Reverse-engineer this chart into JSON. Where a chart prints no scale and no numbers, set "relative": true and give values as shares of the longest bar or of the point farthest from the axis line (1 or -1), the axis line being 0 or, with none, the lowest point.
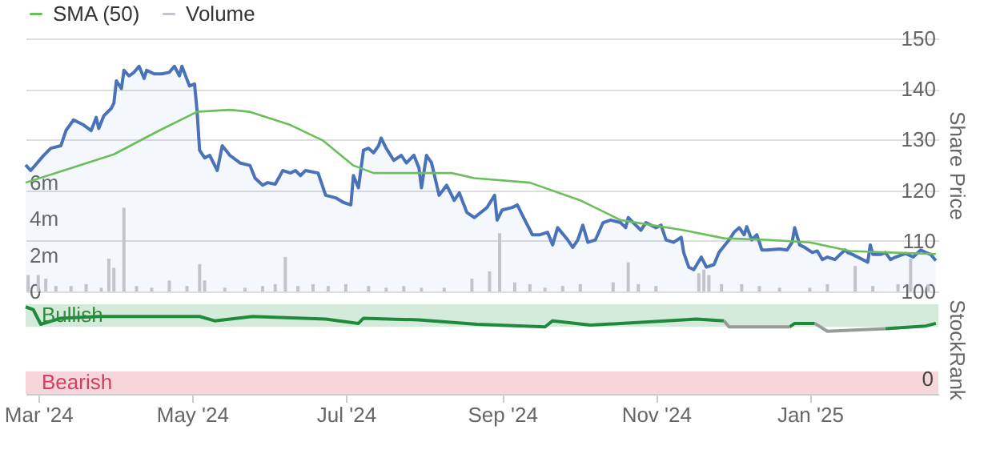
{
  "chart_data": [
    {
      "type": "area",
      "ylabel": "Share Price",
      "xlim": [
        "2024-02-25",
        "2025-02-21"
      ],
      "ylim": [
        100,
        150
      ],
      "yticks": [
        100,
        110,
        120,
        130,
        140,
        150
      ],
      "y2lim": [
        0,
        13.9
      ],
      "y2ticks": [
        0,
        {
          "value": 2,
          "label": "2m"
        },
        {
          "value": 4,
          "label": "4m"
        },
        {
          "value": 6,
          "label": "6m"
        }
      ],
      "grid": "y",
      "legend": "top left",
      "tick_labels": "y",
      "series": [
        {
          "color": "#4a72b8",
          "x": [
            "2024-02-25",
            "2024-02-27",
            "2024-03-03",
            "2024-03-06",
            "2024-03-10",
            "2024-03-12",
            "2024-03-15",
            "2024-03-19",
            "2024-03-22",
            "2024-03-24",
            "2024-03-25",
            "2024-03-27",
            "2024-03-30",
            "2024-03-31",
            "2024-04-01",
            "2024-04-03",
            "2024-04-04",
            "2024-04-06",
            "2024-04-08",
            "2024-04-10",
            "2024-04-12",
            "2024-04-13",
            "2024-04-16",
            "2024-04-19",
            "2024-04-22",
            "2024-04-24",
            "2024-04-26",
            "2024-04-27",
            "2024-04-30",
            "2024-05-02",
            "2024-05-03",
            "2024-05-04",
            "2024-05-06",
            "2024-05-08",
            "2024-05-11",
            "2024-05-13",
            "2024-05-16",
            "2024-05-20",
            "2024-05-24",
            "2024-05-26",
            "2024-05-29",
            "2024-05-31",
            "2024-06-03",
            "2024-06-06",
            "2024-06-09",
            "2024-06-11",
            "2024-06-13",
            "2024-06-15",
            "2024-06-20",
            "2024-06-23",
            "2024-06-27",
            "2024-06-30",
            "2024-07-03",
            "2024-07-04",
            "2024-07-06",
            "2024-07-08",
            "2024-07-10",
            "2024-07-12",
            "2024-07-14",
            "2024-07-15",
            "2024-07-17",
            "2024-07-20",
            "2024-07-23",
            "2024-07-25",
            "2024-07-28",
            "2024-07-30",
            "2024-07-31",
            "2024-08-02",
            "2024-08-04",
            "2024-08-07",
            "2024-08-10",
            "2024-08-13",
            "2024-08-15",
            "2024-08-18",
            "2024-08-21",
            "2024-08-26",
            "2024-08-29",
            "2024-08-30",
            "2024-09-01",
            "2024-09-05",
            "2024-09-07",
            "2024-09-10",
            "2024-09-13",
            "2024-09-16",
            "2024-09-19",
            "2024-09-21",
            "2024-09-23",
            "2024-09-27",
            "2024-09-29",
            "2024-10-01",
            "2024-10-03",
            "2024-10-05",
            "2024-10-08",
            "2024-10-11",
            "2024-10-14",
            "2024-10-18",
            "2024-10-20",
            "2024-10-21",
            "2024-10-23",
            "2024-10-26",
            "2024-10-28",
            "2024-11-01",
            "2024-11-03",
            "2024-11-05",
            "2024-11-08",
            "2024-11-11",
            "2024-11-12",
            "2024-11-14",
            "2024-11-16",
            "2024-11-19",
            "2024-11-21",
            "2024-11-24",
            "2024-11-26",
            "2024-11-30",
            "2024-12-02",
            "2024-12-04",
            "2024-12-06",
            "2024-12-07",
            "2024-12-09",
            "2024-12-11",
            "2024-12-13",
            "2024-12-15",
            "2024-12-20",
            "2024-12-23",
            "2024-12-25",
            "2024-12-26",
            "2024-12-28",
            "2024-12-30",
            "2025-01-02",
            "2025-01-04",
            "2025-01-06",
            "2025-01-08",
            "2025-01-11",
            "2025-01-13",
            "2025-01-15",
            "2025-01-16",
            "2025-01-18",
            "2025-01-22",
            "2025-01-24",
            "2025-01-25",
            "2025-01-26",
            "2025-01-29",
            "2025-01-31",
            "2025-02-02",
            "2025-02-04",
            "2025-02-08",
            "2025-02-11",
            "2025-02-14",
            "2025-02-16",
            "2025-02-18",
            "2025-02-20"
          ],
          "values": [
            125.0,
            123.9,
            126.8,
            128.3,
            128.8,
            131.8,
            133.9,
            132.9,
            131.8,
            134.4,
            132.2,
            134.7,
            136.2,
            137.2,
            141.6,
            140.1,
            143.7,
            142.6,
            143.3,
            144.5,
            142.1,
            143.7,
            143.0,
            143.0,
            143.3,
            144.5,
            142.6,
            144.5,
            140.6,
            141.0,
            135.7,
            127.9,
            126.4,
            126.9,
            123.9,
            128.8,
            126.9,
            125.4,
            124.9,
            122.4,
            121.0,
            121.5,
            121.2,
            123.9,
            123.4,
            123.9,
            122.9,
            123.9,
            123.4,
            119.0,
            118.5,
            117.6,
            117.1,
            122.9,
            120.5,
            127.9,
            128.3,
            127.4,
            128.8,
            130.3,
            128.3,
            125.9,
            126.9,
            125.4,
            126.9,
            124.4,
            120.5,
            126.9,
            125.4,
            119.0,
            121.0,
            118.0,
            119.5,
            115.6,
            114.6,
            116.6,
            119.0,
            114.1,
            116.1,
            116.6,
            117.1,
            114.1,
            111.2,
            111.2,
            111.7,
            109.2,
            112.6,
            110.2,
            108.7,
            110.2,
            113.1,
            109.7,
            110.2,
            113.6,
            114.1,
            113.6,
            112.6,
            114.6,
            113.6,
            112.1,
            113.6,
            112.6,
            113.1,
            110.2,
            109.7,
            110.7,
            107.7,
            104.8,
            104.3,
            106.8,
            104.8,
            105.3,
            107.7,
            110.2,
            111.7,
            112.6,
            111.2,
            112.8,
            110.2,
            111.2,
            108.2,
            108.2,
            108.4,
            108.2,
            109.7,
            112.6,
            109.2,
            108.7,
            107.7,
            108.0,
            106.3,
            106.8,
            106.3,
            107.3,
            108.2,
            107.7,
            107.3,
            106.3,
            105.8,
            109.2,
            107.3,
            107.3,
            107.7,
            106.3,
            106.8,
            107.5,
            106.8,
            108.2,
            107.7,
            107.3,
            106.1
          ]
        },
        {
          "name": "SMA (50)",
          "type": "line",
          "color": "#6abf5a",
          "x": [
            "2024-02-25",
            "2024-03-11",
            "2024-03-31",
            "2024-04-18",
            "2024-05-03",
            "2024-05-16",
            "2024-05-24",
            "2024-06-09",
            "2024-06-22",
            "2024-07-04",
            "2024-07-12",
            "2024-08-12",
            "2024-08-21",
            "2024-09-12",
            "2024-10-02",
            "2024-10-18",
            "2024-11-12",
            "2024-11-28",
            "2024-12-15",
            "2025-01-01",
            "2025-01-17",
            "2025-02-02",
            "2025-02-20"
          ],
          "values": [
            121.5,
            123.9,
            127.1,
            131.8,
            135.5,
            135.9,
            135.5,
            132.9,
            129.8,
            124.9,
            123.4,
            123.4,
            122.4,
            121.5,
            118.0,
            114.1,
            112.1,
            110.5,
            110.2,
            109.7,
            108.0,
            107.7,
            107.4
          ]
        },
        {
          "name": "Volume",
          "type": "bar",
          "axis": "y2",
          "color": "#c3c3c9",
          "x": [
            "2024-02-26",
            "2024-03-01",
            "2024-03-04",
            "2024-03-08",
            "2024-03-14",
            "2024-03-20",
            "2024-03-26",
            "2024-03-29",
            "2024-03-31",
            "2024-04-04",
            "2024-04-09",
            "2024-04-15",
            "2024-04-22",
            "2024-04-29",
            "2024-05-04",
            "2024-05-06",
            "2024-05-14",
            "2024-05-22",
            "2024-05-29",
            "2024-06-03",
            "2024-06-07",
            "2024-06-12",
            "2024-06-18",
            "2024-06-24",
            "2024-07-01",
            "2024-07-10",
            "2024-07-17",
            "2024-07-24",
            "2024-07-31",
            "2024-08-09",
            "2024-08-20",
            "2024-08-27",
            "2024-08-31",
            "2024-09-06",
            "2024-09-12",
            "2024-09-18",
            "2024-09-25",
            "2024-10-02",
            "2024-10-15",
            "2024-10-21",
            "2024-10-25",
            "2024-11-01",
            "2024-11-18",
            "2024-11-20",
            "2024-11-22",
            "2024-11-27",
            "2024-12-05",
            "2024-12-12",
            "2024-12-20",
            "2025-01-01",
            "2025-01-08",
            "2025-01-19",
            "2025-01-26",
            "2025-02-05",
            "2025-02-10",
            "2025-02-17"
          ],
          "values": [
            0.9,
            0.9,
            0.7,
            0.3,
            0.3,
            0.4,
            0.2,
            1.8,
            1.3,
            4.6,
            0.3,
            0.2,
            0.6,
            0.3,
            1.5,
            0.6,
            0.2,
            0.2,
            0.3,
            0.4,
            1.9,
            0.3,
            0.4,
            0.3,
            0.4,
            0.3,
            0.2,
            0.3,
            0.2,
            0.2,
            0.7,
            1.1,
            3.2,
            0.5,
            0.4,
            0.2,
            0.3,
            0.4,
            0.5,
            1.6,
            0.4,
            0.3,
            1.0,
            1.2,
            0.9,
            0.4,
            0.4,
            0.3,
            0.2,
            0.2,
            0.4,
            1.4,
            0.3,
            0.4,
            1.8,
            0.4
          ]
        }
      ]
    },
    {
      "type": "line",
      "ylabel": "StockRank",
      "xlim": [
        "2024-02-25",
        "2025-02-21"
      ],
      "xticks": [
        {
          "value": "2024-03-01",
          "label": "Mar '24"
        },
        {
          "value": "2024-05-01",
          "label": "May '24"
        },
        {
          "value": "2024-07-01",
          "label": "Jul '24"
        },
        {
          "value": "2024-09-01",
          "label": "Sep '24"
        },
        {
          "value": "2024-11-01",
          "label": "Nov '24"
        },
        {
          "value": "2025-01-01",
          "label": "Jan '25"
        }
      ],
      "relative": true,
      "annotations": [
        "0"
      ],
      "bands": [
        {
          "axis": "y",
          "from": 0.77,
          "to": 1.03,
          "label": "Bullish",
          "color": "#d4eadb"
        },
        {
          "axis": "y",
          "from": 0,
          "to": 0.26,
          "label": "Bearish",
          "color": "#f6d6da"
        }
      ],
      "x": [
        "2024-02-25",
        "2024-02-28",
        "2024-03-02",
        "2024-03-10",
        "2024-03-25",
        "2024-05-04",
        "2024-05-10",
        "2024-05-25",
        "2024-06-23",
        "2024-07-06",
        "2024-07-08",
        "2024-07-30",
        "2024-08-22",
        "2024-09-18",
        "2024-09-21",
        "2024-10-06",
        "2024-11-05",
        "2024-11-17",
        "2024-11-28",
        "2024-11-30",
        "2024-12-24",
        "2024-12-26",
        "2025-01-03",
        "2025-01-08",
        "2025-01-31",
        "2025-02-16",
        "2025-02-20"
      ],
      "series": [
        {
          "color": "#1f8a3c",
          "values": [
            1,
            0.97,
            0.8,
            0.87,
            0.89,
            0.89,
            0.84,
            0.89,
            0.86,
            0.81,
            0.87,
            0.85,
            0.8,
            0.77,
            0.84,
            0.79,
            0.84,
            0.86,
            0.84,
            null,
            0.77,
            0.81,
            0.81,
            null,
            0.75,
            0.78,
            0.81
          ]
        },
        {
          "color": "#9a9a9a",
          "values": [
            null,
            null,
            null,
            null,
            null,
            null,
            null,
            null,
            null,
            null,
            null,
            null,
            null,
            null,
            null,
            null,
            null,
            null,
            0.84,
            0.77,
            0.77,
            null,
            0.81,
            0.72,
            0.75,
            null,
            null
          ]
        }
      ]
    }
  ]
}
